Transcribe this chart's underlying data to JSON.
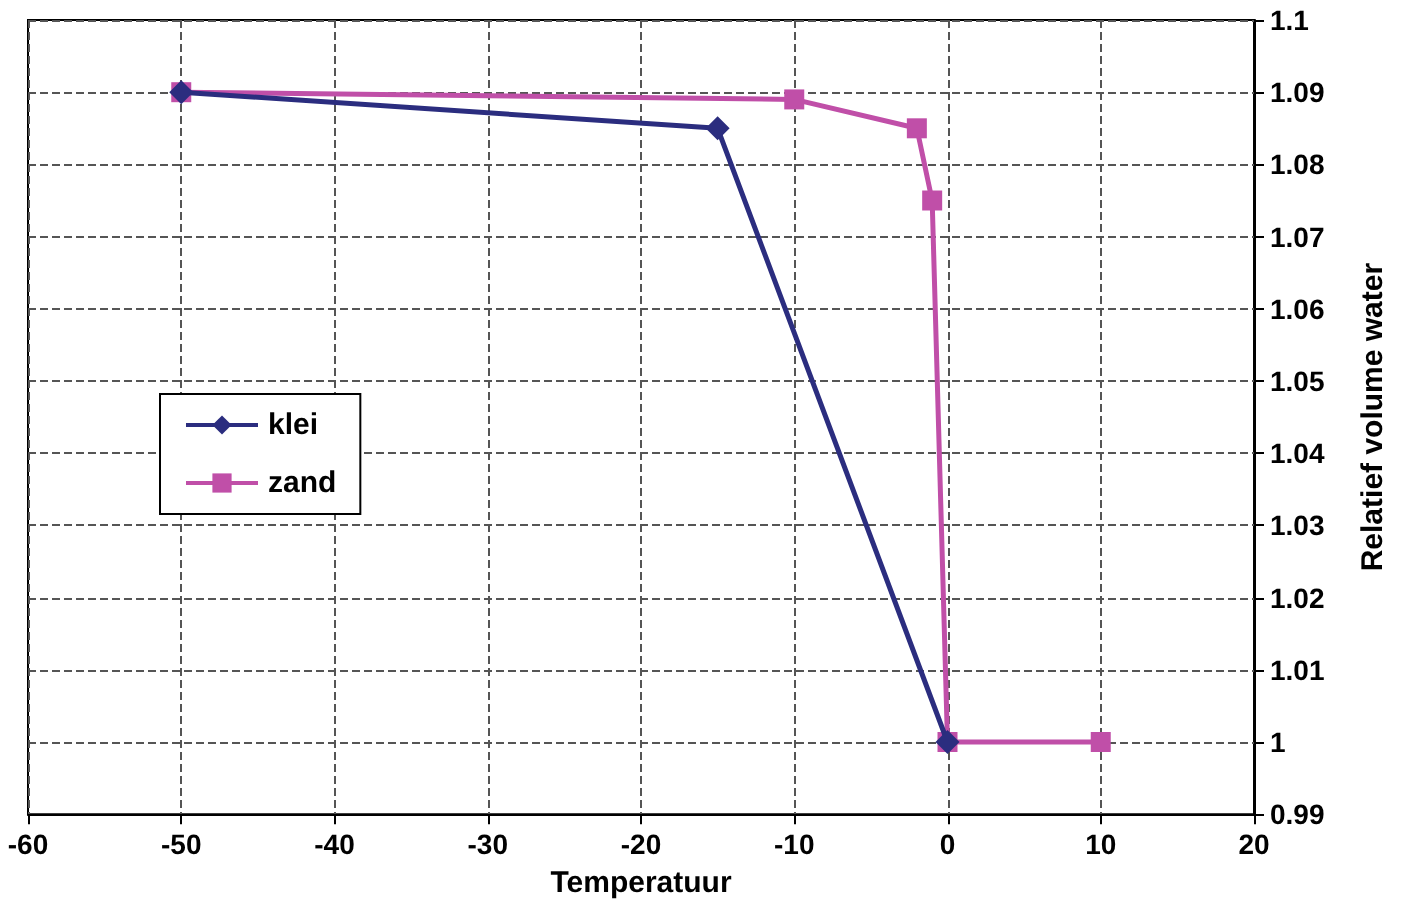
{
  "chart_data": {
    "type": "line",
    "xlabel": "Temperatuur",
    "ylabel": "Relatief volume water",
    "series": [
      {
        "name": "klei",
        "color": "#2b2d7f",
        "marker": "diamond",
        "x": [
          -50,
          -15,
          0
        ],
        "values": [
          1.09,
          1.085,
          1.0
        ]
      },
      {
        "name": "zand",
        "color": "#c04fa8",
        "marker": "square",
        "x": [
          -50,
          -10,
          -2,
          -1,
          0,
          10
        ],
        "values": [
          1.09,
          1.089,
          1.085,
          1.075,
          1.0,
          1.0
        ]
      }
    ],
    "xlim": [
      -60,
      20
    ],
    "xticks": [
      -60,
      -50,
      -40,
      -30,
      -20,
      -10,
      0,
      10,
      20
    ],
    "ylim": [
      0.99,
      1.1
    ],
    "yticks": [
      0.99,
      1,
      1.01,
      1.02,
      1.03,
      1.04,
      1.05,
      1.06,
      1.07,
      1.08,
      1.09,
      1.1
    ],
    "grid": true,
    "legend": "left",
    "line_style": "solid"
  }
}
